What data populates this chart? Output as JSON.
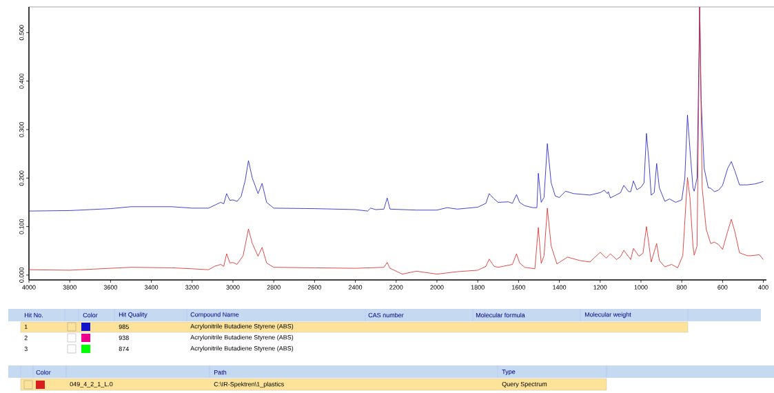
{
  "chart_data": {
    "type": "line",
    "xlim": [
      4000,
      385
    ],
    "ylim": [
      -0.01,
      0.553
    ],
    "xticks": [
      4000,
      3800,
      3600,
      3400,
      3200,
      3000,
      2800,
      2600,
      2400,
      2200,
      2000,
      1800,
      1600,
      1400,
      1200,
      1000,
      800,
      600,
      400
    ],
    "yticks": [
      {
        "value": 0,
        "label": "0.000"
      },
      {
        "value": 0.1,
        "label": "0.100"
      },
      {
        "value": 0.2,
        "label": "0.200"
      },
      {
        "value": 0.3,
        "label": "0.300"
      },
      {
        "value": 0.4,
        "label": "0.400"
      },
      {
        "value": 0.5,
        "label": "0.500"
      }
    ],
    "series": [
      {
        "color": "#1414c8",
        "x": [
          4000,
          3800,
          3700,
          3600,
          3500,
          3300,
          3200,
          3120,
          3080,
          3060,
          3045,
          3031,
          3015,
          3000,
          2980,
          2960,
          2940,
          2924,
          2905,
          2877,
          2857,
          2835,
          2800,
          2600,
          2400,
          2340,
          2325,
          2300,
          2260,
          2244,
          2230,
          2100,
          2000,
          1950,
          1900,
          1800,
          1760,
          1744,
          1720,
          1700,
          1650,
          1630,
          1610,
          1595,
          1570,
          1530,
          1510,
          1503,
          1489,
          1475,
          1459,
          1440,
          1420,
          1400,
          1370,
          1330,
          1250,
          1200,
          1180,
          1165,
          1160,
          1150,
          1100,
          1084,
          1060,
          1050,
          1037,
          1020,
          1000,
          985,
          973,
          960,
          950,
          935,
          923,
          910,
          883,
          860,
          830,
          800,
          785,
          772,
          760,
          745,
          739,
          725,
          712,
          705,
          690,
          670,
          658,
          640,
          620,
          600,
          575,
          557,
          540,
          517,
          480,
          440,
          400
        ],
        "values": [
          0.132,
          0.133,
          0.135,
          0.137,
          0.141,
          0.141,
          0.138,
          0.138,
          0.146,
          0.15,
          0.147,
          0.168,
          0.154,
          0.155,
          0.152,
          0.162,
          0.195,
          0.236,
          0.2,
          0.168,
          0.189,
          0.15,
          0.138,
          0.137,
          0.135,
          0.132,
          0.138,
          0.135,
          0.136,
          0.159,
          0.136,
          0.134,
          0.134,
          0.139,
          0.136,
          0.14,
          0.148,
          0.168,
          0.157,
          0.15,
          0.151,
          0.148,
          0.166,
          0.15,
          0.143,
          0.139,
          0.139,
          0.21,
          0.15,
          0.16,
          0.271,
          0.19,
          0.163,
          0.16,
          0.173,
          0.168,
          0.165,
          0.17,
          0.175,
          0.168,
          0.172,
          0.159,
          0.17,
          0.185,
          0.172,
          0.172,
          0.194,
          0.176,
          0.181,
          0.19,
          0.292,
          0.23,
          0.165,
          0.17,
          0.23,
          0.18,
          0.152,
          0.157,
          0.15,
          0.155,
          0.2,
          0.33,
          0.26,
          0.18,
          0.173,
          0.2,
          0.553,
          0.362,
          0.22,
          0.18,
          0.179,
          0.172,
          0.175,
          0.185,
          0.22,
          0.234,
          0.215,
          0.186,
          0.186,
          0.188,
          0.193
        ]
      },
      {
        "color": "#d81e1e",
        "x": [
          4000,
          3800,
          3600,
          3500,
          3300,
          3200,
          3120,
          3090,
          3060,
          3045,
          3031,
          3015,
          3000,
          2980,
          2950,
          2924,
          2905,
          2877,
          2857,
          2835,
          2800,
          2600,
          2400,
          2260,
          2244,
          2230,
          2170,
          2100,
          2000,
          1900,
          1800,
          1760,
          1744,
          1720,
          1700,
          1630,
          1610,
          1595,
          1570,
          1520,
          1503,
          1489,
          1475,
          1459,
          1440,
          1412,
          1360,
          1300,
          1250,
          1200,
          1170,
          1150,
          1120,
          1100,
          1084,
          1050,
          1037,
          1010,
          990,
          973,
          960,
          950,
          923,
          910,
          883,
          850,
          820,
          795,
          772,
          760,
          745,
          739,
          725,
          712,
          700,
          680,
          658,
          640,
          620,
          600,
          575,
          557,
          540,
          517,
          480,
          460,
          420,
          400
        ],
        "values": [
          0.011,
          0.01,
          0.014,
          0.016,
          0.015,
          0.013,
          0.011,
          0.018,
          0.022,
          0.018,
          0.044,
          0.025,
          0.026,
          0.022,
          0.04,
          0.095,
          0.065,
          0.039,
          0.057,
          0.025,
          0.016,
          0.015,
          0.014,
          0.016,
          0.026,
          0.014,
          0.002,
          0.008,
          0.002,
          0.007,
          0.01,
          0.018,
          0.033,
          0.018,
          0.016,
          0.022,
          0.044,
          0.025,
          0.016,
          0.013,
          0.098,
          0.024,
          0.04,
          0.138,
          0.06,
          0.023,
          0.037,
          0.03,
          0.027,
          0.047,
          0.035,
          0.044,
          0.032,
          0.038,
          0.051,
          0.032,
          0.055,
          0.039,
          0.045,
          0.1,
          0.06,
          0.027,
          0.065,
          0.03,
          0.017,
          0.022,
          0.015,
          0.04,
          0.201,
          0.16,
          0.06,
          0.041,
          0.06,
          0.553,
          0.18,
          0.094,
          0.065,
          0.068,
          0.063,
          0.053,
          0.09,
          0.115,
          0.09,
          0.046,
          0.04,
          0.04,
          0.042,
          0.032
        ]
      }
    ],
    "annotations": [
      "Hit No.",
      "Color",
      "Hit Quality",
      "Compound Name",
      "CAS number",
      "Molecular formula",
      "Molecular weight",
      "1",
      "985",
      "Acrylonitrile Butadiene Styrene (ABS)",
      "2",
      "938",
      "Acrylonitrile Butadiene Styrene (ABS)",
      "3",
      "874",
      "Acrylonitrile Butadiene Styrene (ABS)",
      "Color",
      "Path",
      "Type",
      "049_4_2_1_L.0",
      "C:\\IR-Spektren\\1_plastics",
      "Query Spectrum"
    ]
  }
}
